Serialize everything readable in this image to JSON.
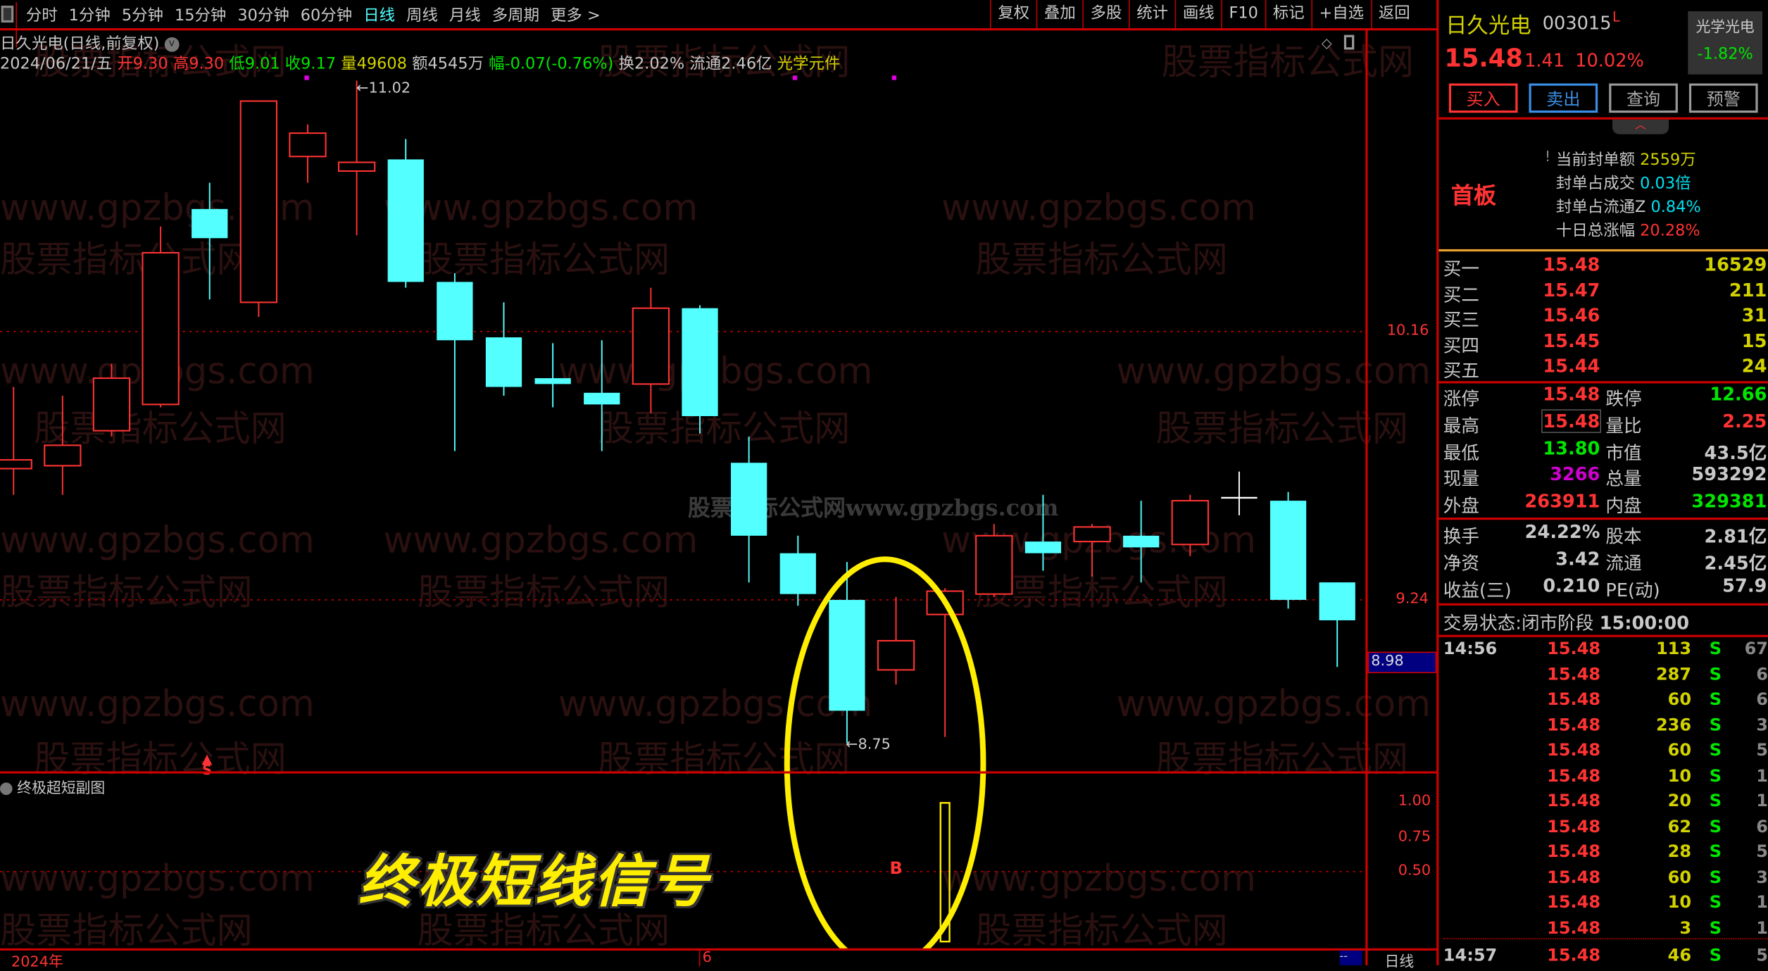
{
  "toolbar": {
    "periods": [
      "分时",
      "1分钟",
      "5分钟",
      "15分钟",
      "30分钟",
      "60分钟",
      "日线",
      "周线",
      "月线",
      "多周期",
      "更多 >"
    ],
    "active": "日线",
    "right_buttons": [
      "复权",
      "叠加",
      "多股",
      "统计",
      "画线",
      "F10",
      "标记",
      "+自选",
      "返回"
    ]
  },
  "chart_header": {
    "title": "日久光电(日线,前复权)",
    "date": "2024/06/21/五",
    "open_label": "开",
    "open": "9.30",
    "high_label": "高",
    "high": "9.30",
    "low_label": "低",
    "low": "9.01",
    "close_label": "收",
    "close": "9.17",
    "vol_label": "量",
    "vol": "49608",
    "amount": "额4545万",
    "chg_label": "幅",
    "chg": "-0.07(-0.76%)",
    "turnover": "换2.02%",
    "float": "流通2.46亿",
    "sector": "光学元件"
  },
  "watermark": {
    "url": "www.gpzbgs.com",
    "cn": "股票指标公式网",
    "center": "股票指标公式网www.gpzbgs.com"
  },
  "annotations": {
    "high_label": "11.02",
    "low_label": "8.75",
    "signal_marker": "S",
    "signal_title": "终极短线信号",
    "sub_marker": "B"
  },
  "price_axis": {
    "labels": [
      "10.16",
      "9.24"
    ],
    "current": "8.98"
  },
  "subchart": {
    "title": "终极超短副图",
    "axis": [
      "1.00",
      "0.75",
      "0.50"
    ],
    "signal_value": 1.0
  },
  "time_axis": {
    "start": "2024年",
    "tick": "6",
    "period": "日线",
    "box": "--"
  },
  "colors": {
    "up": "#ff3333",
    "down": "#54ffff",
    "signal": "#ffee00",
    "bg": "#000000",
    "grid": "#c00000"
  },
  "chart_data": {
    "type": "candlestick",
    "ylim": [
      8.7,
      11.1
    ],
    "gridlines": [
      10.16,
      9.24
    ],
    "candles": [
      {
        "o": 9.69,
        "h": 9.97,
        "l": 9.6,
        "c": 9.72
      },
      {
        "o": 9.7,
        "h": 9.94,
        "l": 9.6,
        "c": 9.77
      },
      {
        "o": 9.82,
        "h": 10.05,
        "l": 9.8,
        "c": 10.0
      },
      {
        "o": 9.91,
        "h": 10.52,
        "l": 9.9,
        "c": 10.43
      },
      {
        "o": 10.58,
        "h": 10.67,
        "l": 10.27,
        "c": 10.48
      },
      {
        "o": 10.26,
        "h": 10.95,
        "l": 10.21,
        "c": 10.95
      },
      {
        "o": 10.76,
        "h": 10.87,
        "l": 10.67,
        "c": 10.84
      },
      {
        "o": 10.71,
        "h": 11.02,
        "l": 10.49,
        "c": 10.74
      },
      {
        "o": 10.75,
        "h": 10.82,
        "l": 10.31,
        "c": 10.33
      },
      {
        "o": 10.33,
        "h": 10.36,
        "l": 9.75,
        "c": 10.13
      },
      {
        "o": 10.14,
        "h": 10.26,
        "l": 9.94,
        "c": 9.97
      },
      {
        "o": 10.0,
        "h": 10.12,
        "l": 9.9,
        "c": 9.98
      },
      {
        "o": 9.95,
        "h": 10.13,
        "l": 9.75,
        "c": 9.91
      },
      {
        "o": 9.98,
        "h": 10.31,
        "l": 9.88,
        "c": 10.24
      },
      {
        "o": 10.24,
        "h": 10.25,
        "l": 9.81,
        "c": 9.87
      },
      {
        "o": 9.71,
        "h": 9.8,
        "l": 9.3,
        "c": 9.46
      },
      {
        "o": 9.4,
        "h": 9.46,
        "l": 9.22,
        "c": 9.26
      },
      {
        "o": 9.24,
        "h": 9.37,
        "l": 8.75,
        "c": 8.86
      },
      {
        "o": 9.0,
        "h": 9.25,
        "l": 8.95,
        "c": 9.1
      },
      {
        "o": 9.19,
        "h": 9.28,
        "l": 8.77,
        "c": 9.27
      },
      {
        "o": 9.26,
        "h": 9.5,
        "l": 9.25,
        "c": 9.46
      },
      {
        "o": 9.44,
        "h": 9.6,
        "l": 9.34,
        "c": 9.4
      },
      {
        "o": 9.44,
        "h": 9.5,
        "l": 9.32,
        "c": 9.49
      },
      {
        "o": 9.46,
        "h": 9.58,
        "l": 9.3,
        "c": 9.42
      },
      {
        "o": 9.43,
        "h": 9.6,
        "l": 9.39,
        "c": 9.58
      },
      {
        "o": 9.59,
        "h": 9.68,
        "l": 9.53,
        "c": 9.59
      },
      {
        "o": 9.58,
        "h": 9.61,
        "l": 9.21,
        "c": 9.24
      },
      {
        "o": 9.3,
        "h": 9.3,
        "l": 9.01,
        "c": 9.17
      }
    ],
    "signal_bars": [
      {
        "index": 18,
        "value": 1.0
      }
    ]
  },
  "quote": {
    "name": "日久光电",
    "code": "003015",
    "flag": "L",
    "price": "15.48",
    "change": "1.41",
    "pct": "10.02%",
    "sector_name": "光学光电",
    "sector_pct": "-1.82%",
    "buttons": [
      "买入",
      "卖出",
      "查询",
      "预警"
    ],
    "board": "首板",
    "seal": [
      {
        "label": "当前封单额",
        "value": "2559万",
        "color": "yel"
      },
      {
        "label": "封单占成交",
        "value": "0.03倍",
        "color": "cy"
      },
      {
        "label": "封单占流通Z",
        "value": "0.84%",
        "color": "cy"
      },
      {
        "label": "十日总涨幅",
        "value": "20.28%",
        "color": "red"
      }
    ],
    "bids": [
      {
        "label": "买一",
        "price": "15.48",
        "vol": "16529"
      },
      {
        "label": "买二",
        "price": "15.47",
        "vol": "211"
      },
      {
        "label": "买三",
        "price": "15.46",
        "vol": "31"
      },
      {
        "label": "买四",
        "price": "15.45",
        "vol": "15"
      },
      {
        "label": "买五",
        "price": "15.44",
        "vol": "24"
      }
    ],
    "stats": [
      {
        "l": "涨停",
        "v": "15.48",
        "vc": "red",
        "l2": "跌停",
        "v2": "12.66",
        "v2c": "grn"
      },
      {
        "l": "最高",
        "v": "15.48",
        "vc": "red",
        "l2": "量比",
        "v2": "2.25",
        "v2c": "red"
      },
      {
        "l": "最低",
        "v": "13.80",
        "vc": "grn",
        "l2": "市值",
        "v2": "43.5亿",
        "v2c": "wht"
      },
      {
        "l": "现量",
        "v": "3266",
        "vc": "mag",
        "l2": "总量",
        "v2": "593292",
        "v2c": "wht"
      },
      {
        "l": "外盘",
        "v": "263911",
        "vc": "red",
        "l2": "内盘",
        "v2": "329381",
        "v2c": "grn"
      }
    ],
    "fund": [
      {
        "l": "换手",
        "v": "24.22%",
        "l2": "股本",
        "v2": "2.81亿"
      },
      {
        "l": "净资",
        "v": "3.42",
        "l2": "流通",
        "v2": "2.45亿"
      },
      {
        "l": "收益(三)",
        "v": "0.210",
        "l2": "PE(动)",
        "v2": "57.9"
      }
    ],
    "status_label": "交易状态:",
    "status": "闭市阶段",
    "status_time": "15:00:00",
    "ticks": [
      {
        "t": "14:56",
        "p": "15.48",
        "v": "113",
        "s": "S",
        "n": "67"
      },
      {
        "t": "",
        "p": "15.48",
        "v": "287",
        "s": "S",
        "n": "6"
      },
      {
        "t": "",
        "p": "15.48",
        "v": "60",
        "s": "S",
        "n": "6"
      },
      {
        "t": "",
        "p": "15.48",
        "v": "236",
        "s": "S",
        "n": "3"
      },
      {
        "t": "",
        "p": "15.48",
        "v": "60",
        "s": "S",
        "n": "5"
      },
      {
        "t": "",
        "p": "15.48",
        "v": "10",
        "s": "S",
        "n": "1"
      },
      {
        "t": "",
        "p": "15.48",
        "v": "20",
        "s": "S",
        "n": "1"
      },
      {
        "t": "",
        "p": "15.48",
        "v": "62",
        "s": "S",
        "n": "6"
      },
      {
        "t": "",
        "p": "15.48",
        "v": "28",
        "s": "S",
        "n": "5"
      },
      {
        "t": "",
        "p": "15.48",
        "v": "60",
        "s": "S",
        "n": "3"
      },
      {
        "t": "",
        "p": "15.48",
        "v": "10",
        "s": "S",
        "n": "1"
      },
      {
        "t": "",
        "p": "15.48",
        "v": "3",
        "s": "S",
        "n": "1"
      },
      {
        "t": "14:57",
        "p": "15.48",
        "v": "46",
        "s": "S",
        "n": "5"
      }
    ]
  }
}
